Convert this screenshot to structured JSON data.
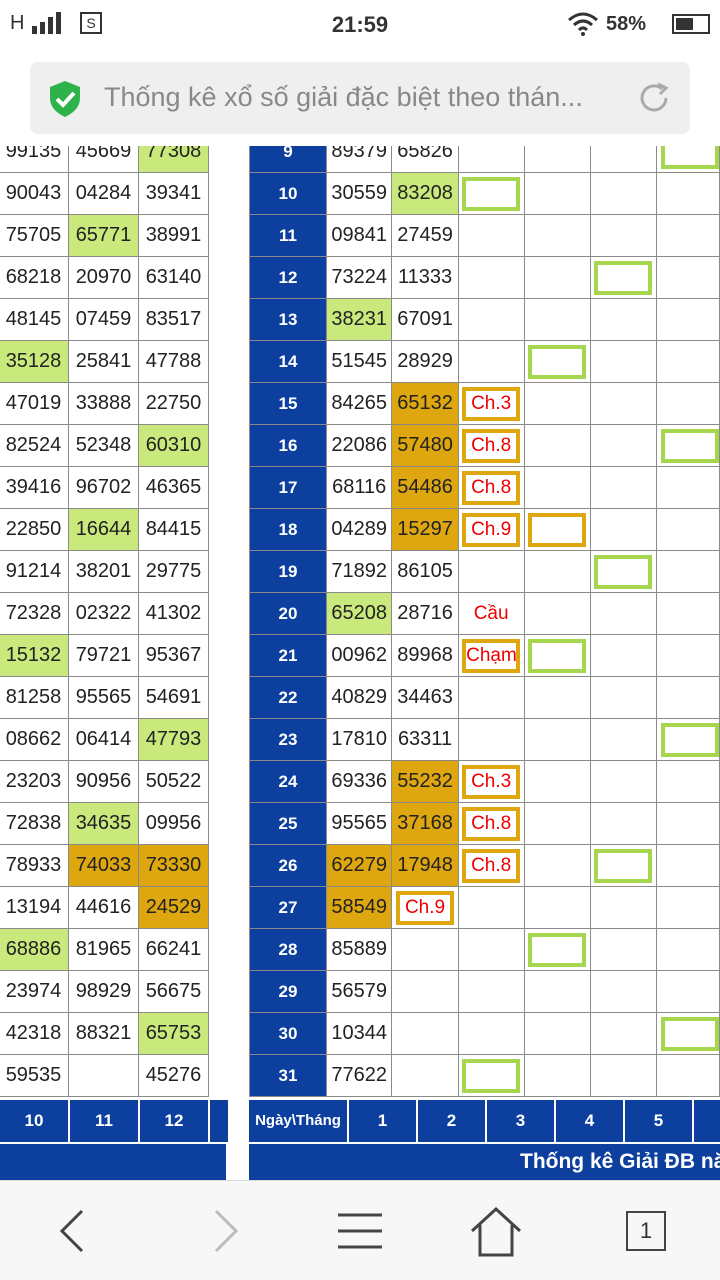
{
  "status_bar": {
    "network": "H",
    "time": "21:59",
    "battery_pct": "58%",
    "battery_level": 0.58
  },
  "browser": {
    "page_title": "Thống kê xổ số giải đặc biệt theo thán..."
  },
  "left_table": {
    "columns": [
      "10",
      "11",
      "12"
    ],
    "rows": [
      {
        "v": [
          "99135",
          "45669",
          "77308"
        ],
        "s": [
          "",
          "",
          "g"
        ]
      },
      {
        "v": [
          "90043",
          "04284",
          "39341"
        ],
        "s": [
          "",
          "",
          ""
        ]
      },
      {
        "v": [
          "75705",
          "65771",
          "38991"
        ],
        "s": [
          "",
          "g",
          ""
        ]
      },
      {
        "v": [
          "68218",
          "20970",
          "63140"
        ],
        "s": [
          "",
          "",
          ""
        ]
      },
      {
        "v": [
          "48145",
          "07459",
          "83517"
        ],
        "s": [
          "",
          "",
          ""
        ]
      },
      {
        "v": [
          "35128",
          "25841",
          "47788"
        ],
        "s": [
          "g",
          "",
          ""
        ]
      },
      {
        "v": [
          "47019",
          "33888",
          "22750"
        ],
        "s": [
          "",
          "",
          ""
        ]
      },
      {
        "v": [
          "82524",
          "52348",
          "60310"
        ],
        "s": [
          "",
          "",
          "g"
        ]
      },
      {
        "v": [
          "39416",
          "96702",
          "46365"
        ],
        "s": [
          "",
          "",
          ""
        ]
      },
      {
        "v": [
          "22850",
          "16644",
          "84415"
        ],
        "s": [
          "",
          "g",
          ""
        ]
      },
      {
        "v": [
          "91214",
          "38201",
          "29775"
        ],
        "s": [
          "",
          "",
          ""
        ]
      },
      {
        "v": [
          "72328",
          "02322",
          "41302"
        ],
        "s": [
          "",
          "",
          ""
        ]
      },
      {
        "v": [
          "15132",
          "79721",
          "95367"
        ],
        "s": [
          "g",
          "",
          ""
        ]
      },
      {
        "v": [
          "81258",
          "95565",
          "54691"
        ],
        "s": [
          "",
          "",
          ""
        ]
      },
      {
        "v": [
          "08662",
          "06414",
          "47793"
        ],
        "s": [
          "",
          "",
          "g"
        ]
      },
      {
        "v": [
          "23203",
          "90956",
          "50522"
        ],
        "s": [
          "",
          "",
          ""
        ]
      },
      {
        "v": [
          "72838",
          "34635",
          "09956"
        ],
        "s": [
          "",
          "g",
          ""
        ]
      },
      {
        "v": [
          "78933",
          "74033",
          "73330"
        ],
        "s": [
          "",
          "o",
          "o"
        ]
      },
      {
        "v": [
          "13194",
          "44616",
          "24529"
        ],
        "s": [
          "",
          "",
          "o"
        ]
      },
      {
        "v": [
          "68886",
          "81965",
          "66241"
        ],
        "s": [
          "g",
          "",
          ""
        ]
      },
      {
        "v": [
          "23974",
          "98929",
          "56675"
        ],
        "s": [
          "",
          "",
          ""
        ]
      },
      {
        "v": [
          "42318",
          "88321",
          "65753"
        ],
        "s": [
          "",
          "",
          "g"
        ]
      },
      {
        "v": [
          "59535",
          "",
          "45276"
        ],
        "s": [
          "",
          "",
          ""
        ]
      }
    ]
  },
  "right_table": {
    "header_label": "Ngày\\Tháng",
    "columns": [
      "1",
      "2",
      "3",
      "4",
      "5"
    ],
    "rows": [
      {
        "day": "9",
        "c1": "89379",
        "c2": "65826",
        "s1": "",
        "s2": "",
        "box3": "",
        "box4": "",
        "box5": "",
        "box6": "g"
      },
      {
        "day": "10",
        "c1": "30559",
        "c2": "83208",
        "s1": "",
        "s2": "g",
        "box3": "g",
        "box4": "",
        "box5": "",
        "box6": ""
      },
      {
        "day": "11",
        "c1": "09841",
        "c2": "27459",
        "s1": "",
        "s2": "",
        "box3": "",
        "box4": "",
        "box5": "",
        "box6": ""
      },
      {
        "day": "12",
        "c1": "73224",
        "c2": "11333",
        "s1": "",
        "s2": "",
        "box3": "",
        "box4": "",
        "box5": "g",
        "box6": ""
      },
      {
        "day": "13",
        "c1": "38231",
        "c2": "67091",
        "s1": "g",
        "s2": "",
        "box3": "",
        "box4": "",
        "box5": "",
        "box6": ""
      },
      {
        "day": "14",
        "c1": "51545",
        "c2": "28929",
        "s1": "",
        "s2": "",
        "box3": "",
        "box4": "g",
        "box5": "",
        "box6": ""
      },
      {
        "day": "15",
        "c1": "84265",
        "c2": "65132",
        "s1": "",
        "s2": "o",
        "box3": "o",
        "t3": "Ch.3",
        "box4": "",
        "box5": "",
        "box6": ""
      },
      {
        "day": "16",
        "c1": "22086",
        "c2": "57480",
        "s1": "",
        "s2": "o",
        "box3": "o",
        "t3": "Ch.8",
        "box4": "",
        "box5": "",
        "box6": "g"
      },
      {
        "day": "17",
        "c1": "68116",
        "c2": "54486",
        "s1": "",
        "s2": "o",
        "box3": "o",
        "t3": "Ch.8",
        "box4": "",
        "box5": "",
        "box6": ""
      },
      {
        "day": "18",
        "c1": "04289",
        "c2": "15297",
        "s1": "",
        "s2": "o",
        "box3": "o",
        "t3": "Ch.9",
        "box4": "o",
        "box5": "",
        "box6": ""
      },
      {
        "day": "19",
        "c1": "71892",
        "c2": "86105",
        "s1": "",
        "s2": "",
        "box3": "",
        "box4": "",
        "box5": "g",
        "box6": ""
      },
      {
        "day": "20",
        "c1": "65208",
        "c2": "28716",
        "s1": "g",
        "s2": "",
        "box3": "w",
        "t3": "Cầu",
        "box4": "",
        "box5": "",
        "box6": ""
      },
      {
        "day": "21",
        "c1": "00962",
        "c2": "89968",
        "s1": "",
        "s2": "",
        "box3": "o",
        "t3": "Chạm",
        "box4": "g",
        "box5": "",
        "box6": ""
      },
      {
        "day": "22",
        "c1": "40829",
        "c2": "34463",
        "s1": "",
        "s2": "",
        "box3": "",
        "box4": "",
        "box5": "",
        "box6": ""
      },
      {
        "day": "23",
        "c1": "17810",
        "c2": "63311",
        "s1": "",
        "s2": "",
        "box3": "",
        "box4": "",
        "box5": "",
        "box6": "g"
      },
      {
        "day": "24",
        "c1": "69336",
        "c2": "55232",
        "s1": "",
        "s2": "o",
        "box3": "o",
        "t3": "Ch.3",
        "box4": "",
        "box5": "",
        "box6": ""
      },
      {
        "day": "25",
        "c1": "95565",
        "c2": "37168",
        "s1": "",
        "s2": "o",
        "box3": "o",
        "t3": "Ch.8",
        "box4": "",
        "box5": "",
        "box6": ""
      },
      {
        "day": "26",
        "c1": "62279",
        "c2": "17948",
        "s1": "o",
        "s2": "o",
        "box3": "o",
        "t3": "Ch.8",
        "box4": "",
        "box5": "g",
        "box6": ""
      },
      {
        "day": "27",
        "c1": "58549",
        "c2": "",
        "s1": "o",
        "s2": "ob",
        "t2": "Ch.9",
        "box3": "",
        "box4": "",
        "box5": "",
        "box6": ""
      },
      {
        "day": "28",
        "c1": "85889",
        "c2": "",
        "s1": "",
        "s2": "",
        "box3": "",
        "box4": "g",
        "box5": "",
        "box6": ""
      },
      {
        "day": "29",
        "c1": "56579",
        "c2": "",
        "s1": "",
        "s2": "",
        "box3": "",
        "box4": "",
        "box5": "",
        "box6": ""
      },
      {
        "day": "30",
        "c1": "10344",
        "c2": "",
        "s1": "",
        "s2": "",
        "box3": "",
        "box4": "",
        "box5": "",
        "box6": "g"
      },
      {
        "day": "31",
        "c1": "77622",
        "c2": "",
        "s1": "",
        "s2": "",
        "box3": "g",
        "box4": "",
        "box5": "",
        "box6": ""
      }
    ]
  },
  "footer_title": "Thống kê Giải ĐB nă",
  "colors": {
    "blue": "#0c3f9e",
    "green": "#c9e97c",
    "orange": "#dfa70f",
    "red": "#e00000"
  },
  "nav": {
    "tab_count": "1"
  }
}
